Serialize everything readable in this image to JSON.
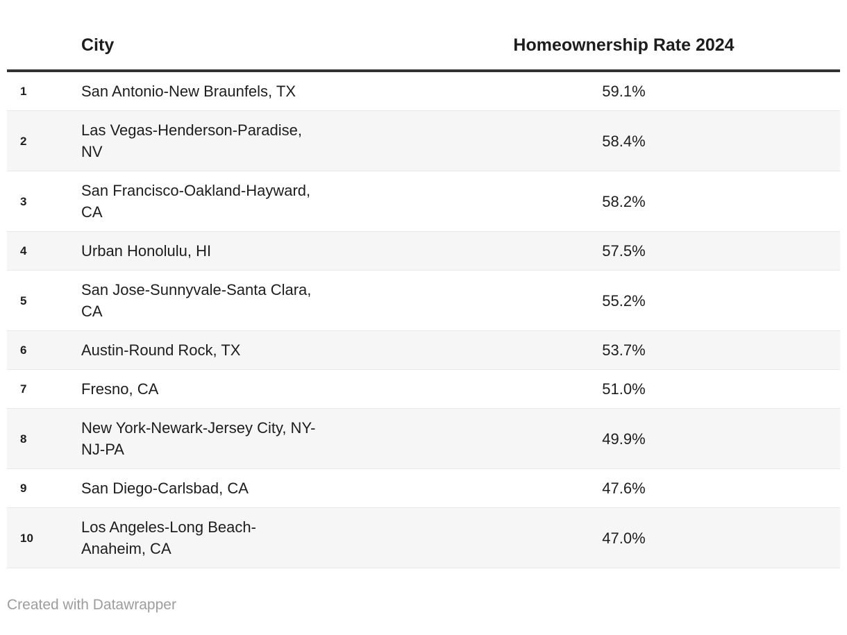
{
  "table": {
    "header": {
      "rank": "",
      "city": "City",
      "rate": "Homeownership Rate 2024"
    },
    "rows": [
      {
        "rank": "1",
        "city": "San Antonio-New Braunfels, TX",
        "city_lines": [
          "San Antonio-New Braunfels, TX"
        ],
        "rate": "59.1%"
      },
      {
        "rank": "2",
        "city": "Las Vegas-Henderson-Paradise, NV",
        "city_lines": [
          "Las Vegas-Henderson-Paradise,",
          "NV"
        ],
        "rate": "58.4%"
      },
      {
        "rank": "3",
        "city": "San Francisco-Oakland-Hayward, CA",
        "city_lines": [
          "San Francisco-Oakland-Hayward,",
          "CA"
        ],
        "rate": "58.2%"
      },
      {
        "rank": "4",
        "city": "Urban Honolulu, HI",
        "city_lines": [
          "Urban Honolulu, HI"
        ],
        "rate": "57.5%"
      },
      {
        "rank": "5",
        "city": "San Jose-Sunnyvale-Santa Clara, CA",
        "city_lines": [
          "San Jose-Sunnyvale-Santa Clara,",
          "CA"
        ],
        "rate": "55.2%"
      },
      {
        "rank": "6",
        "city": "Austin-Round Rock, TX",
        "city_lines": [
          "Austin-Round Rock, TX"
        ],
        "rate": "53.7%"
      },
      {
        "rank": "7",
        "city": "Fresno, CA",
        "city_lines": [
          "Fresno, CA"
        ],
        "rate": "51.0%"
      },
      {
        "rank": "8",
        "city": "New York-Newark-Jersey City, NY-NJ-PA",
        "city_lines": [
          "New York-Newark-Jersey City, NY-",
          "NJ-PA"
        ],
        "rate": "49.9%"
      },
      {
        "rank": "9",
        "city": "San Diego-Carlsbad, CA",
        "city_lines": [
          "San Diego-Carlsbad, CA"
        ],
        "rate": "47.6%"
      },
      {
        "rank": "10",
        "city": "Los Angeles-Long Beach-Anaheim, CA",
        "city_lines": [
          "Los Angeles-Long Beach-",
          "Anaheim, CA"
        ],
        "rate": "47.0%"
      }
    ]
  },
  "footer": {
    "credit": "Created with Datawrapper"
  },
  "colors": {
    "header_rule": "#333333",
    "row_stripe": "#f6f6f6",
    "row_separator": "#e9e9e9",
    "text": "#1d1d1d",
    "credit_text": "#9d9d9d",
    "background": "#ffffff"
  },
  "chart_data": {
    "type": "table",
    "title": "",
    "columns": [
      "",
      "City",
      "Homeownership Rate 2024"
    ],
    "categories": [
      "San Antonio-New Braunfels, TX",
      "Las Vegas-Henderson-Paradise, NV",
      "San Francisco-Oakland-Hayward, CA",
      "Urban Honolulu, HI",
      "San Jose-Sunnyvale-Santa Clara, CA",
      "Austin-Round Rock, TX",
      "Fresno, CA",
      "New York-Newark-Jersey City, NY-NJ-PA",
      "San Diego-Carlsbad, CA",
      "Los Angeles-Long Beach-Anaheim, CA"
    ],
    "ranks": [
      1,
      2,
      3,
      4,
      5,
      6,
      7,
      8,
      9,
      10
    ],
    "values": [
      59.1,
      58.4,
      58.2,
      57.5,
      55.2,
      53.7,
      51.0,
      49.9,
      47.6,
      47.0
    ],
    "value_format": "percent",
    "layout_hints": {
      "zebra_striping": true,
      "rank_column": true,
      "value_alignment": "center"
    },
    "credit": "Created with Datawrapper"
  }
}
